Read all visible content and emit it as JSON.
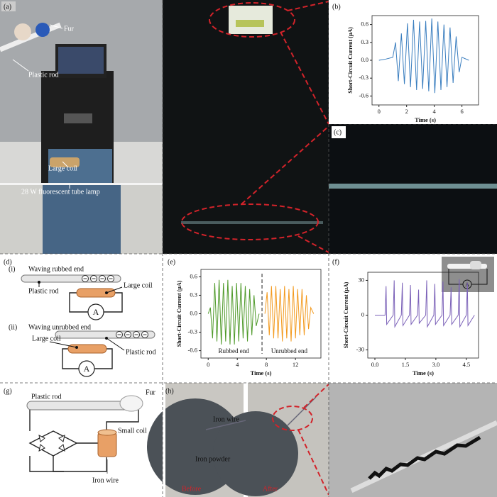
{
  "panels": {
    "a": {
      "label": "(a)",
      "fur": "Fur",
      "plastic_rod": "Plastic rod",
      "large_coil": "Large coil",
      "lamp": "28 W fluorescent tube lamp"
    },
    "c": {
      "label": "(c)"
    },
    "d": {
      "label": "(d)",
      "i": {
        "num": "(i)",
        "title": "Waving rubbed end",
        "rod": "Plastic rod",
        "coil": "Large coil"
      },
      "ii": {
        "num": "(ii)",
        "title": "Waving unrubbed end",
        "rod": "Plastic rod",
        "coil": "Large coil"
      },
      "meter": "A"
    },
    "g": {
      "label": "(g)",
      "rod": "Plastic rod",
      "fur": "Fur",
      "coil": "Small coil",
      "wire": "Iron wire"
    },
    "h": {
      "label": "(h)",
      "wire": "Iron wire",
      "powder": "Iron powder",
      "before": "Before",
      "after": "After"
    }
  },
  "chart_data": [
    {
      "type": "line",
      "label": "(b)",
      "xlabel": "Time (s)",
      "ylabel": "Short-Circuit Current (μA)",
      "xlim": [
        -0.5,
        7.2
      ],
      "xticks": [
        0,
        2,
        4,
        6
      ],
      "ylim": [
        -0.75,
        0.75
      ],
      "yticks": [
        -0.6,
        -0.3,
        {
          "value": 0,
          "label": "0.0"
        },
        0.3,
        0.6
      ],
      "series": [
        {
          "color": "#3a7ebf",
          "x": [
            0,
            0.5,
            1.0,
            1.2,
            1.4,
            1.62,
            1.84,
            2.06,
            2.28,
            2.5,
            2.72,
            2.94,
            3.16,
            3.38,
            3.6,
            3.82,
            4.04,
            4.26,
            4.48,
            4.7,
            4.92,
            5.14,
            5.36,
            5.58,
            5.8,
            6.0,
            6.5
          ],
          "values": [
            0,
            0.02,
            0.05,
            0.3,
            -0.35,
            0.45,
            -0.4,
            0.62,
            -0.45,
            0.68,
            -0.5,
            0.65,
            -0.48,
            0.66,
            -0.52,
            0.7,
            -0.55,
            0.65,
            -0.5,
            0.6,
            -0.45,
            0.55,
            -0.38,
            0.4,
            -0.2,
            0.05,
            0
          ]
        }
      ]
    },
    {
      "type": "line",
      "label": "(e)",
      "xlabel": "Time (s)",
      "ylabel": "Short-Circuit Current (μA)",
      "xlim": [
        -1,
        15.5
      ],
      "xticks": [
        0,
        4,
        8,
        12
      ],
      "ylim": [
        -0.72,
        0.72
      ],
      "yticks": [
        -0.6,
        -0.3,
        {
          "value": 0,
          "label": "0.0"
        },
        0.3,
        0.6
      ],
      "divider_x": 7.4,
      "series": [
        {
          "name": "Rubbed end",
          "color": "#4f9a2a",
          "x": [
            0,
            0.3,
            0.6,
            0.9,
            1.2,
            1.5,
            1.8,
            2.1,
            2.4,
            2.7,
            3.0,
            3.3,
            3.6,
            3.9,
            4.2,
            4.5,
            4.8,
            5.1,
            5.4,
            5.7,
            6.0,
            6.3,
            6.6,
            7.0
          ],
          "values": [
            0,
            0.1,
            -0.4,
            0.5,
            -0.45,
            0.55,
            -0.5,
            0.5,
            -0.45,
            0.55,
            -0.5,
            0.45,
            -0.5,
            0.5,
            -0.45,
            0.5,
            -0.4,
            0.45,
            -0.45,
            0.4,
            -0.35,
            0.3,
            -0.2,
            0
          ]
        },
        {
          "name": "Unrubbed end",
          "color": "#f39a1e",
          "x": [
            7.8,
            8.1,
            8.4,
            8.7,
            9.0,
            9.3,
            9.6,
            9.9,
            10.2,
            10.5,
            10.8,
            11.1,
            11.4,
            11.7,
            12.0,
            12.3,
            12.6,
            12.9,
            13.2,
            13.5,
            13.8,
            14.1,
            14.5
          ],
          "values": [
            0,
            0.35,
            -0.35,
            0.45,
            -0.4,
            0.45,
            -0.4,
            0.4,
            -0.45,
            0.45,
            -0.4,
            0.4,
            -0.45,
            0.45,
            -0.4,
            0.4,
            -0.35,
            0.4,
            -0.35,
            0.3,
            -0.25,
            0.1,
            0
          ]
        }
      ]
    },
    {
      "type": "line",
      "label": "(f)",
      "xlabel": "Time (s)",
      "ylabel": "Short-Circuit Current (μA)",
      "xlim": [
        -0.35,
        5.1
      ],
      "xticks": [
        {
          "value": 0,
          "label": "0.0"
        },
        1.5,
        {
          "value": 3,
          "label": "3.0"
        },
        4.5
      ],
      "ylim": [
        -37,
        37
      ],
      "yticks": [
        -30,
        0,
        30
      ],
      "series": [
        {
          "color": "#7b61b8",
          "x": [
            0,
            0.5,
            0.55,
            0.58,
            0.9,
            0.95,
            0.98,
            1.3,
            1.35,
            1.38,
            1.7,
            1.75,
            1.78,
            2.1,
            2.15,
            2.18,
            2.5,
            2.55,
            2.58,
            2.9,
            2.95,
            2.98,
            3.3,
            3.35,
            3.38,
            3.7,
            3.75,
            3.78,
            4.1,
            4.15,
            4.18,
            4.5,
            4.55,
            4.58,
            4.9
          ],
          "values": [
            0,
            0,
            25,
            -8,
            0,
            30,
            -10,
            0,
            28,
            -9,
            0,
            26,
            -8,
            0,
            22,
            -7,
            0,
            30,
            -10,
            0,
            27,
            -8,
            0,
            29,
            -9,
            0,
            24,
            -8,
            0,
            31,
            -10,
            0,
            28,
            -9,
            0
          ]
        }
      ]
    }
  ]
}
